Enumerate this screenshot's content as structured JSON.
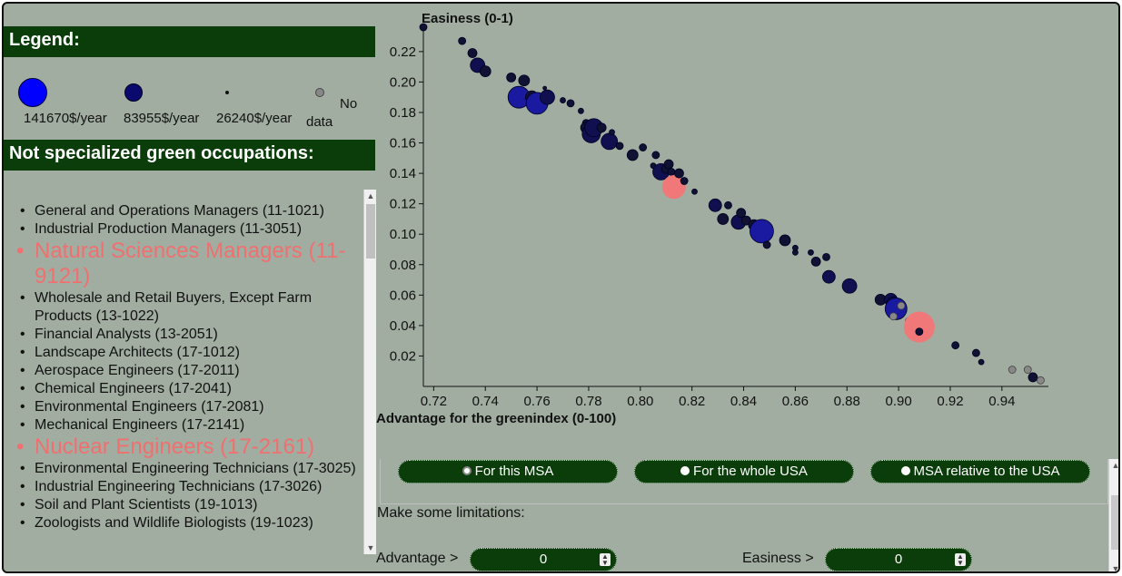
{
  "legend": {
    "title": "Legend:",
    "items": [
      {
        "label": "141670$/year"
      },
      {
        "label": "83955$/year"
      },
      {
        "label": "26240$/year"
      },
      {
        "label_line1": "No",
        "label_line2": "data"
      }
    ]
  },
  "occupations": {
    "title": "Not specialized green occupations:",
    "items": [
      {
        "label": "General and Operations Managers (11-1021)",
        "highlight": false
      },
      {
        "label": "Industrial Production Managers (11-3051)",
        "highlight": false
      },
      {
        "label": "Natural Sciences Managers (11-9121)",
        "highlight": true
      },
      {
        "label": "Wholesale and Retail Buyers, Except Farm Products (13-1022)",
        "highlight": false
      },
      {
        "label": "Financial Analysts (13-2051)",
        "highlight": false
      },
      {
        "label": "Landscape Architects (17-1012)",
        "highlight": false
      },
      {
        "label": "Aerospace Engineers (17-2011)",
        "highlight": false
      },
      {
        "label": "Chemical Engineers (17-2041)",
        "highlight": false
      },
      {
        "label": "Environmental Engineers (17-2081)",
        "highlight": false
      },
      {
        "label": "Mechanical Engineers (17-2141)",
        "highlight": false
      },
      {
        "label": "Nuclear Engineers (17-2161)",
        "highlight": true
      },
      {
        "label": "Environmental Engineering Technicians (17-3025)",
        "highlight": false
      },
      {
        "label": "Industrial Engineering Technicians (17-3026)",
        "highlight": false
      },
      {
        "label": "Soil and Plant Scientists (19-1013)",
        "highlight": false
      },
      {
        "label": "Zoologists and Wildlife Biologists (19-1023)",
        "highlight": false
      }
    ]
  },
  "chart": {
    "ylabel": "Easiness (0-1)",
    "xlabel": "Advantage for the greenindex (0-100)",
    "x_ticks": [
      "0.72",
      "0.74",
      "0.76",
      "0.78",
      "0.80",
      "0.82",
      "0.84",
      "0.86",
      "0.88",
      "0.90",
      "0.92",
      "0.94"
    ],
    "y_ticks": [
      "0.22",
      "0.20",
      "0.18",
      "0.16",
      "0.14",
      "0.12",
      "0.10",
      "0.08",
      "0.06",
      "0.04",
      "0.02"
    ]
  },
  "chart_data": {
    "type": "scatter",
    "x_range": [
      0.716,
      0.958
    ],
    "y_range": [
      0.0,
      0.236
    ],
    "colors": {
      "no_data": "#888888",
      "highlight": "#f07878"
    },
    "points": [
      {
        "x": 0.716,
        "y": 0.236,
        "r": 4,
        "c": "#111133"
      },
      {
        "x": 0.731,
        "y": 0.227,
        "r": 4,
        "c": "#111133"
      },
      {
        "x": 0.735,
        "y": 0.219,
        "r": 5,
        "c": "#111133"
      },
      {
        "x": 0.737,
        "y": 0.211,
        "r": 8,
        "c": "#101050"
      },
      {
        "x": 0.74,
        "y": 0.207,
        "r": 6,
        "c": "#111133"
      },
      {
        "x": 0.75,
        "y": 0.203,
        "r": 5,
        "c": "#111133"
      },
      {
        "x": 0.753,
        "y": 0.19,
        "r": 12,
        "c": "#1a1aa0"
      },
      {
        "x": 0.755,
        "y": 0.201,
        "r": 6,
        "c": "#111133"
      },
      {
        "x": 0.758,
        "y": 0.19,
        "r": 7,
        "c": "#111133"
      },
      {
        "x": 0.76,
        "y": 0.186,
        "r": 12,
        "c": "#1a1aa0"
      },
      {
        "x": 0.764,
        "y": 0.19,
        "r": 8,
        "c": "#101050"
      },
      {
        "x": 0.763,
        "y": 0.196,
        "r": 2,
        "c": "#111133"
      },
      {
        "x": 0.77,
        "y": 0.188,
        "r": 3,
        "c": "#111133"
      },
      {
        "x": 0.773,
        "y": 0.186,
        "r": 4,
        "c": "#111133"
      },
      {
        "x": 0.777,
        "y": 0.181,
        "r": 3,
        "c": "#111133"
      },
      {
        "x": 0.779,
        "y": 0.173,
        "r": 4,
        "c": "#111133"
      },
      {
        "x": 0.779,
        "y": 0.17,
        "r": 6,
        "c": "#111133"
      },
      {
        "x": 0.781,
        "y": 0.166,
        "r": 10,
        "c": "#101050"
      },
      {
        "x": 0.782,
        "y": 0.17,
        "r": 10,
        "c": "#101050"
      },
      {
        "x": 0.785,
        "y": 0.17,
        "r": 5,
        "c": "#111133"
      },
      {
        "x": 0.788,
        "y": 0.161,
        "r": 9,
        "c": "#101050"
      },
      {
        "x": 0.789,
        "y": 0.167,
        "r": 3,
        "c": "#111133"
      },
      {
        "x": 0.792,
        "y": 0.158,
        "r": 4,
        "c": "#111133"
      },
      {
        "x": 0.797,
        "y": 0.152,
        "r": 6,
        "c": "#111133"
      },
      {
        "x": 0.801,
        "y": 0.157,
        "r": 4,
        "c": "#111133"
      },
      {
        "x": 0.805,
        "y": 0.145,
        "r": 3,
        "c": "#111133"
      },
      {
        "x": 0.806,
        "y": 0.152,
        "r": 4,
        "c": "#111133"
      },
      {
        "x": 0.808,
        "y": 0.141,
        "r": 9,
        "c": "#101050"
      },
      {
        "x": 0.81,
        "y": 0.143,
        "r": 5,
        "c": "#111133"
      },
      {
        "x": 0.811,
        "y": 0.146,
        "r": 5,
        "c": "#111133"
      },
      {
        "x": 0.812,
        "y": 0.141,
        "r": 4,
        "c": "#111133"
      },
      {
        "x": 0.813,
        "y": 0.131,
        "r": 13,
        "c": "#f07878"
      },
      {
        "x": 0.815,
        "y": 0.14,
        "r": 5,
        "c": "#111133"
      },
      {
        "x": 0.817,
        "y": 0.135,
        "r": 4,
        "c": "#111133"
      },
      {
        "x": 0.821,
        "y": 0.128,
        "r": 3,
        "c": "#111133"
      },
      {
        "x": 0.829,
        "y": 0.119,
        "r": 7,
        "c": "#101050"
      },
      {
        "x": 0.832,
        "y": 0.11,
        "r": 6,
        "c": "#111133"
      },
      {
        "x": 0.834,
        "y": 0.119,
        "r": 4,
        "c": "#111133"
      },
      {
        "x": 0.838,
        "y": 0.108,
        "r": 8,
        "c": "#101050"
      },
      {
        "x": 0.839,
        "y": 0.114,
        "r": 5,
        "c": "#111133"
      },
      {
        "x": 0.841,
        "y": 0.109,
        "r": 5,
        "c": "#111133"
      },
      {
        "x": 0.844,
        "y": 0.106,
        "r": 6,
        "c": "#111133"
      },
      {
        "x": 0.847,
        "y": 0.102,
        "r": 13,
        "c": "#1a1aa0"
      },
      {
        "x": 0.849,
        "y": 0.093,
        "r": 4,
        "c": "#111133"
      },
      {
        "x": 0.856,
        "y": 0.096,
        "r": 6,
        "c": "#111133"
      },
      {
        "x": 0.86,
        "y": 0.088,
        "r": 3,
        "c": "#111133"
      },
      {
        "x": 0.86,
        "y": 0.091,
        "r": 3,
        "c": "#111133"
      },
      {
        "x": 0.866,
        "y": 0.088,
        "r": 3,
        "c": "#111133"
      },
      {
        "x": 0.868,
        "y": 0.082,
        "r": 5,
        "c": "#111133"
      },
      {
        "x": 0.872,
        "y": 0.085,
        "r": 4,
        "c": "#111133"
      },
      {
        "x": 0.873,
        "y": 0.072,
        "r": 7,
        "c": "#101050"
      },
      {
        "x": 0.881,
        "y": 0.066,
        "r": 8,
        "c": "#101050"
      },
      {
        "x": 0.893,
        "y": 0.057,
        "r": 6,
        "c": "#111133"
      },
      {
        "x": 0.897,
        "y": 0.057,
        "r": 7,
        "c": "#101050"
      },
      {
        "x": 0.898,
        "y": 0.054,
        "r": 8,
        "c": "#101050"
      },
      {
        "x": 0.899,
        "y": 0.051,
        "r": 12,
        "c": "#1a1aa0"
      },
      {
        "x": 0.901,
        "y": 0.053,
        "r": 4,
        "c": "#888888"
      },
      {
        "x": 0.898,
        "y": 0.046,
        "r": 4,
        "c": "#888888"
      },
      {
        "x": 0.904,
        "y": 0.043,
        "r": 4,
        "c": "#888888"
      },
      {
        "x": 0.906,
        "y": 0.039,
        "r": 4,
        "c": "#888888"
      },
      {
        "x": 0.908,
        "y": 0.039,
        "r": 17,
        "c": "#f07878"
      },
      {
        "x": 0.908,
        "y": 0.036,
        "r": 4,
        "c": "#111133"
      },
      {
        "x": 0.922,
        "y": 0.027,
        "r": 4,
        "c": "#111133"
      },
      {
        "x": 0.93,
        "y": 0.022,
        "r": 4,
        "c": "#111133"
      },
      {
        "x": 0.932,
        "y": 0.016,
        "r": 3,
        "c": "#111133"
      },
      {
        "x": 0.944,
        "y": 0.011,
        "r": 4,
        "c": "#888888"
      },
      {
        "x": 0.95,
        "y": 0.011,
        "r": 4,
        "c": "#888888"
      },
      {
        "x": 0.952,
        "y": 0.006,
        "r": 5,
        "c": "#111133"
      },
      {
        "x": 0.955,
        "y": 0.004,
        "r": 4,
        "c": "#888888"
      }
    ]
  },
  "toggles": [
    {
      "label": "For this MSA",
      "selected": true
    },
    {
      "label": "For the whole USA",
      "selected": false
    },
    {
      "label": "MSA relative to the USA",
      "selected": false
    }
  ],
  "limits": {
    "title": "Make some limitations:",
    "advantage_label": "Advantage >",
    "advantage_value": "0",
    "easiness_label": "Easiness >",
    "easiness_value": "0"
  }
}
